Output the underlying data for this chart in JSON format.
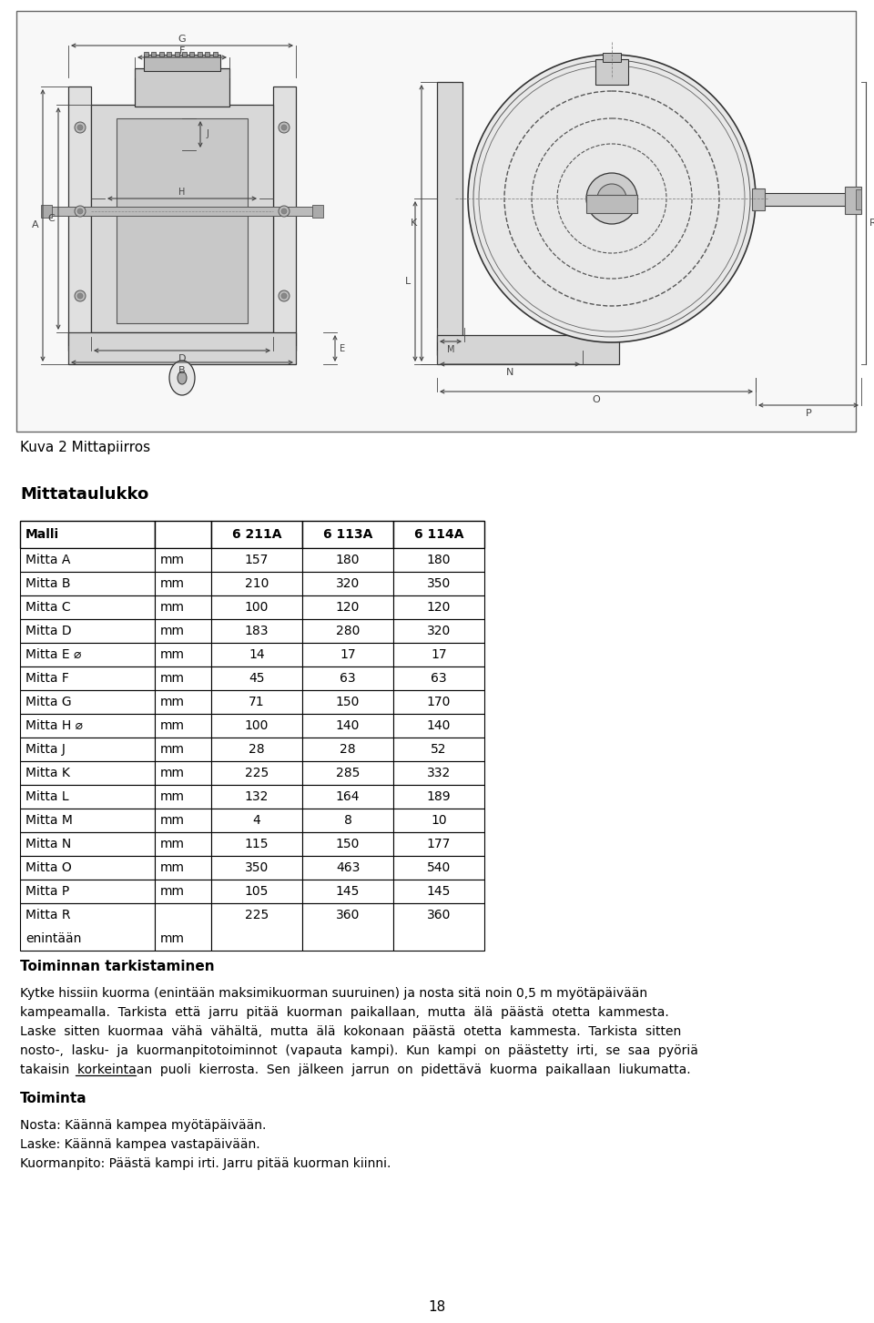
{
  "image_caption": "Kuva 2 Mittapiirros",
  "table_title": "Mittataulukko",
  "table_header": [
    "Malli",
    "",
    "6 211A",
    "6 113A",
    "6 114A"
  ],
  "table_rows": [
    [
      "Mitta A",
      "mm",
      "157",
      "180",
      "180"
    ],
    [
      "Mitta B",
      "mm",
      "210",
      "320",
      "350"
    ],
    [
      "Mitta C",
      "mm",
      "100",
      "120",
      "120"
    ],
    [
      "Mitta D",
      "mm",
      "183",
      "280",
      "320"
    ],
    [
      "Mitta E ⌀",
      "mm",
      "14",
      "17",
      "17"
    ],
    [
      "Mitta F",
      "mm",
      "45",
      "63",
      "63"
    ],
    [
      "Mitta G",
      "mm",
      "71",
      "150",
      "170"
    ],
    [
      "Mitta H ⌀",
      "mm",
      "100",
      "140",
      "140"
    ],
    [
      "Mitta J",
      "mm",
      "28",
      "28",
      "52"
    ],
    [
      "Mitta K",
      "mm",
      "225",
      "285",
      "332"
    ],
    [
      "Mitta L",
      "mm",
      "132",
      "164",
      "189"
    ],
    [
      "Mitta M",
      "mm",
      "4",
      "8",
      "10"
    ],
    [
      "Mitta N",
      "mm",
      "115",
      "150",
      "177"
    ],
    [
      "Mitta O",
      "mm",
      "350",
      "463",
      "540"
    ],
    [
      "Mitta P",
      "mm",
      "105",
      "145",
      "145"
    ],
    [
      "Mitta R\nenintään",
      "mm",
      "225",
      "360",
      "360"
    ]
  ],
  "section1_title": "Toiminnan tarkistaminen",
  "lines_para": [
    "Kytke hissiin kuorma (enintään maksimikuorman suuruinen) ja nosta sitä noin 0,5 m myötäpäivään",
    "kampeamalla.  Tarkista  että  jarru  pitää  kuorman  paikallaan,  mutta  älä  päästä  otetta  kammesta.",
    "Laske  sitten  kuormaa  vähä  vähältä,  mutta  älä  kokonaan  päästä  otetta  kammesta.  Tarkista  sitten",
    "nosto-,  lasku-  ja  kuormanpitotoiminnot  (vapauta  kampi).  Kun  kampi  on  päästetty  irti,  se  saa  pyöriä",
    "takaisin  korkeintaan  puoli  kierrosta.  Sen  jälkeen  jarrun  on  pidettävä  kuorma  paikallaan  liukumatta."
  ],
  "section2_title": "Toiminta",
  "section2_lines": [
    "Nosta: Käännä kampea myötäpäivään.",
    "Laske: Käännä kampea vastapäivään.",
    "Kuormanpito: Päästä kampi irti. Jarru pitää kuorman kiinni."
  ],
  "page_number": "18",
  "bg_color": "#ffffff",
  "text_color": "#000000",
  "drawing_box_color": "#666666",
  "drawing_bg": "#f8f8f8",
  "drawing_line_color": "#333333",
  "drawing_dim_color": "#444444"
}
